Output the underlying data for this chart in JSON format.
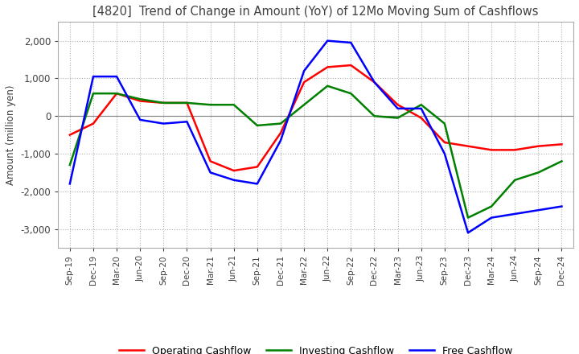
{
  "title": "[4820]  Trend of Change in Amount (YoY) of 12Mo Moving Sum of Cashflows",
  "ylabel": "Amount (million yen)",
  "ylim": [
    -3500,
    2500
  ],
  "yticks": [
    -3000,
    -2000,
    -1000,
    0,
    1000,
    2000
  ],
  "x_labels": [
    "Sep-19",
    "Dec-19",
    "Mar-20",
    "Jun-20",
    "Sep-20",
    "Dec-20",
    "Mar-21",
    "Jun-21",
    "Sep-21",
    "Dec-21",
    "Mar-22",
    "Jun-22",
    "Sep-22",
    "Dec-22",
    "Mar-23",
    "Jun-23",
    "Sep-23",
    "Dec-23",
    "Mar-24",
    "Jun-24",
    "Sep-24",
    "Dec-24"
  ],
  "operating": [
    -500,
    -200,
    600,
    400,
    350,
    350,
    -1200,
    -1450,
    -1350,
    -450,
    900,
    1300,
    1350,
    900,
    300,
    -50,
    -700,
    -800,
    -900,
    -900,
    -800,
    -750
  ],
  "investing": [
    -1300,
    600,
    600,
    450,
    350,
    350,
    300,
    300,
    -250,
    -200,
    300,
    800,
    600,
    0,
    -50,
    300,
    -200,
    -2700,
    -2400,
    -1700,
    -1500,
    -1200
  ],
  "free": [
    -1800,
    1050,
    1050,
    -100,
    -200,
    -150,
    -1500,
    -1700,
    -1800,
    -650,
    1200,
    2000,
    1950,
    900,
    200,
    200,
    -1000,
    -3100,
    -2700,
    -2600,
    -2500,
    -2400
  ],
  "operating_color": "#ff0000",
  "investing_color": "#008000",
  "free_color": "#0000ff",
  "background_color": "#ffffff",
  "grid_color": "#b0b0b0",
  "grid_style": "dotted",
  "title_color": "#404040"
}
